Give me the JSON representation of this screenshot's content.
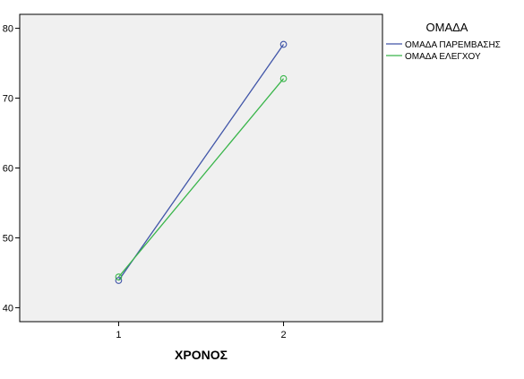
{
  "chart_data": {
    "type": "line",
    "title": "",
    "xlabel": "ΧΡΟΝΟΣ",
    "ylabel": "",
    "categories": [
      "1",
      "2"
    ],
    "x": [
      1,
      2
    ],
    "xlim": [
      0.4,
      2.6
    ],
    "ylim": [
      38,
      82
    ],
    "yticks": [
      40,
      50,
      60,
      70,
      80
    ],
    "grid": false,
    "legend": {
      "title": "ΟΜΑΔΑ",
      "placement": "right"
    },
    "series": [
      {
        "name": "ΟΜΑΔΑ ΠΑΡΕΜΒΑΣΗΣ",
        "values": [
          43.9,
          77.7
        ],
        "color": "#4055a8"
      },
      {
        "name": "ΟΜΑΔΑ ΕΛΕΓΧΟΥ",
        "values": [
          44.4,
          72.8
        ],
        "color": "#39b54a"
      }
    ],
    "plot_background": "#f0f0f0",
    "marker": "open-circle"
  }
}
